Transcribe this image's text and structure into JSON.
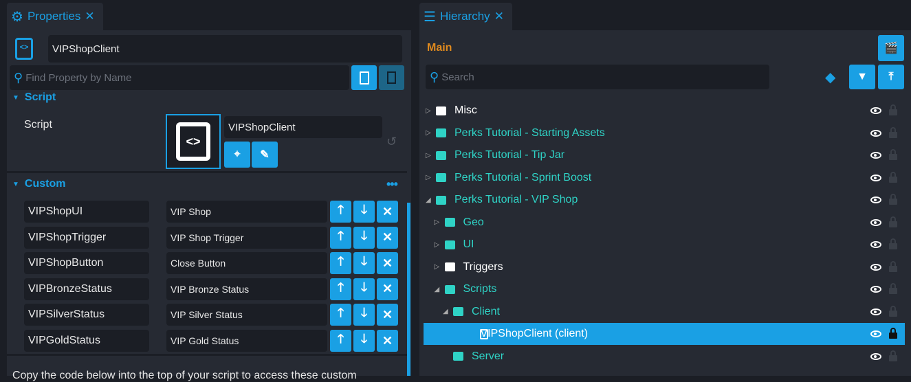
{
  "properties": {
    "tab_label": "Properties",
    "object_name": "VIPShopClient",
    "search_placeholder": "Find Property by Name",
    "script_section": "Script",
    "script_label": "Script",
    "script_value": "VIPShopClient",
    "custom_section": "Custom",
    "custom": [
      {
        "name": "VIPShopUI",
        "value": "VIP Shop"
      },
      {
        "name": "VIPShopTrigger",
        "value": "VIP Shop Trigger"
      },
      {
        "name": "VIPShopButton",
        "value": "Close Button"
      },
      {
        "name": "VIPBronzeStatus",
        "value": "VIP Bronze Status"
      },
      {
        "name": "VIPSilverStatus",
        "value": "VIP Silver Status"
      },
      {
        "name": "VIPGoldStatus",
        "value": "VIP Gold Status"
      }
    ],
    "footer_text": "Copy the code below into the top of your script to access these custom"
  },
  "hierarchy": {
    "tab_label": "Hierarchy",
    "scene": "Main",
    "search_placeholder": "Search",
    "items": [
      {
        "label": "Misc",
        "level": 0,
        "expanded": false,
        "color": "#ffffff"
      },
      {
        "label": "Perks Tutorial - Starting Assets",
        "level": 0,
        "expanded": false,
        "color": "#2fd3c6"
      },
      {
        "label": "Perks Tutorial - Tip Jar",
        "level": 0,
        "expanded": false,
        "color": "#2fd3c6"
      },
      {
        "label": "Perks Tutorial - Sprint Boost",
        "level": 0,
        "expanded": false,
        "color": "#2fd3c6"
      },
      {
        "label": "Perks Tutorial - VIP Shop",
        "level": 0,
        "expanded": true,
        "color": "#2fd3c6"
      },
      {
        "label": "Geo",
        "level": 1,
        "expanded": false,
        "color": "#2fd3c6"
      },
      {
        "label": "UI",
        "level": 1,
        "expanded": false,
        "color": "#2fd3c6"
      },
      {
        "label": "Triggers",
        "level": 1,
        "expanded": false,
        "color": "#ffffff"
      },
      {
        "label": "Scripts",
        "level": 1,
        "expanded": true,
        "color": "#2fd3c6"
      },
      {
        "label": "Client",
        "level": 2,
        "expanded": true,
        "color": "#2fd3c6"
      },
      {
        "label": "VIPShopClient (client)",
        "level": 3,
        "selected": true,
        "color": "#ffffff"
      },
      {
        "label": "Server",
        "level": 2,
        "color": "#2fd3c6"
      }
    ]
  },
  "colors": {
    "accent": "#1aa0e4",
    "scene": "#e08a1e",
    "folder_teal": "#2fd3c6"
  }
}
